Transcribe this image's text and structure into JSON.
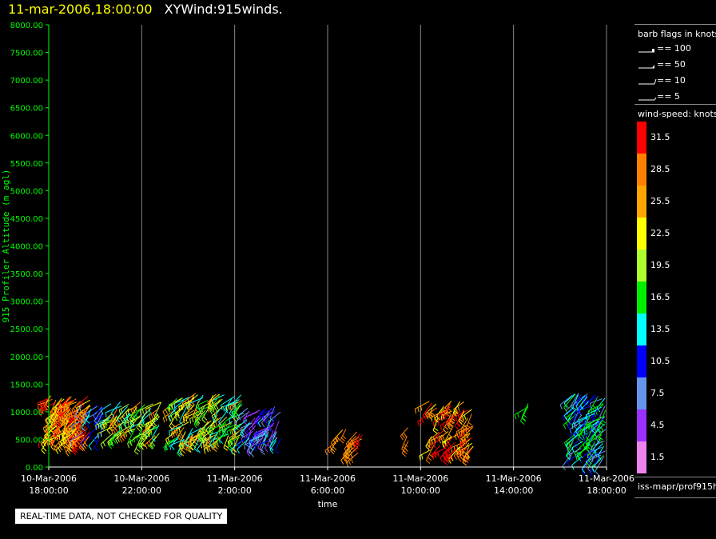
{
  "header": {
    "date": "11-mar-2006,18:00:00",
    "product": "XYWind:915winds."
  },
  "quality_note": "REAL-TIME DATA, NOT CHECKED FOR QUALITY",
  "legend": {
    "barb_title": "barb flags in knots",
    "barb_flags": [
      {
        "label": "== 100",
        "kind": "flag100"
      },
      {
        "label": "== 50",
        "kind": "flag50"
      },
      {
        "label": "== 10",
        "kind": "barb10"
      },
      {
        "label": "== 5",
        "kind": "barb5"
      }
    ],
    "speed_title": "wind-speed: knots",
    "speed_scale": [
      {
        "label": "31.5",
        "color": "#ff0000"
      },
      {
        "label": "28.5",
        "color": "#ff7f00"
      },
      {
        "label": "25.5",
        "color": "#ffa500"
      },
      {
        "label": "22.5",
        "color": "#ffff00"
      },
      {
        "label": "19.5",
        "color": "#adff2f"
      },
      {
        "label": "16.5",
        "color": "#00ee00"
      },
      {
        "label": "13.5",
        "color": "#00ffff"
      },
      {
        "label": "10.5",
        "color": "#0000ff"
      },
      {
        "label": "7.5",
        "color": "#6495ed"
      },
      {
        "label": "4.5",
        "color": "#9b30ff"
      },
      {
        "label": "1.5",
        "color": "#ee82ee"
      }
    ],
    "source": "iss-mapr/prof915h"
  },
  "chart_data": {
    "type": "scatter",
    "subtype": "wind-barb time-height",
    "ylabel": "915 Profiler Altitude (m agl)",
    "xlabel": "time",
    "ylim": [
      0,
      8000
    ],
    "yticks": [
      "0.00",
      "500.00",
      "1000.00",
      "1500.00",
      "2000.00",
      "2500.00",
      "3000.00",
      "3500.00",
      "4000.00",
      "4500.00",
      "5000.00",
      "5500.00",
      "6000.00",
      "6500.00",
      "7000.00",
      "7500.00",
      "8000.00"
    ],
    "xlim_hours": [
      0,
      24
    ],
    "xticks": [
      {
        "hour": 0,
        "label": [
          "10-Mar-2006",
          "18:00:00"
        ]
      },
      {
        "hour": 4,
        "label": [
          "10-Mar-2006",
          "22:00:00"
        ]
      },
      {
        "hour": 8,
        "label": [
          "11-Mar-2006",
          "2:00:00"
        ]
      },
      {
        "hour": 12,
        "label": [
          "11-Mar-2006",
          "6:00:00"
        ]
      },
      {
        "hour": 16,
        "label": [
          "11-Mar-2006",
          "10:00:00"
        ]
      },
      {
        "hour": 20,
        "label": [
          "11-Mar-2006",
          "14:00:00"
        ]
      },
      {
        "hour": 24,
        "label": [
          "11-Mar-2006",
          "18:00:00"
        ]
      }
    ],
    "grid": "vertical",
    "axis_color": "#00ff00",
    "clusters": [
      {
        "hours": [
          0.0,
          1.8
        ],
        "alt": [
          450,
          1300
        ],
        "speeds": [
          31.5,
          28.5,
          25.5,
          22.5
        ],
        "count": 120
      },
      {
        "hours": [
          1.4,
          2.4
        ],
        "alt": [
          550,
          1150
        ],
        "speeds": [
          13.5,
          10.5,
          7.5
        ],
        "count": 20
      },
      {
        "hours": [
          2.6,
          4.9
        ],
        "alt": [
          550,
          1200
        ],
        "speeds": [
          13.5,
          16.5,
          19.5,
          22.5,
          28.5
        ],
        "count": 75
      },
      {
        "hours": [
          5.4,
          8.4
        ],
        "alt": [
          480,
          1350
        ],
        "speeds": [
          16.5,
          19.5,
          22.5,
          13.5,
          25.5
        ],
        "count": 130
      },
      {
        "hours": [
          8.5,
          10.0
        ],
        "alt": [
          450,
          1100
        ],
        "speeds": [
          10.5,
          7.5,
          4.5,
          13.5
        ],
        "count": 65
      },
      {
        "hours": [
          12.3,
          12.8
        ],
        "alt": [
          450,
          750
        ],
        "speeds": [
          25.5,
          28.5
        ],
        "count": 5
      },
      {
        "hours": [
          13.1,
          13.5
        ],
        "alt": [
          250,
          700
        ],
        "speeds": [
          28.5,
          25.5,
          31.5
        ],
        "count": 12
      },
      {
        "hours": [
          15.4,
          15.6
        ],
        "alt": [
          450,
          800
        ],
        "speeds": [
          28.5
        ],
        "count": 3
      },
      {
        "hours": [
          16.3,
          18.3
        ],
        "alt": [
          300,
          1200
        ],
        "speeds": [
          25.5,
          28.5,
          22.5,
          31.5
        ],
        "count": 70
      },
      {
        "hours": [
          20.6,
          20.9
        ],
        "alt": [
          850,
          1200
        ],
        "speeds": [
          16.5
        ],
        "count": 3
      },
      {
        "hours": [
          22.5,
          24.0
        ],
        "alt": [
          100,
          1350
        ],
        "speeds": [
          13.5,
          16.5,
          10.5,
          7.5
        ],
        "count": 110
      }
    ]
  }
}
